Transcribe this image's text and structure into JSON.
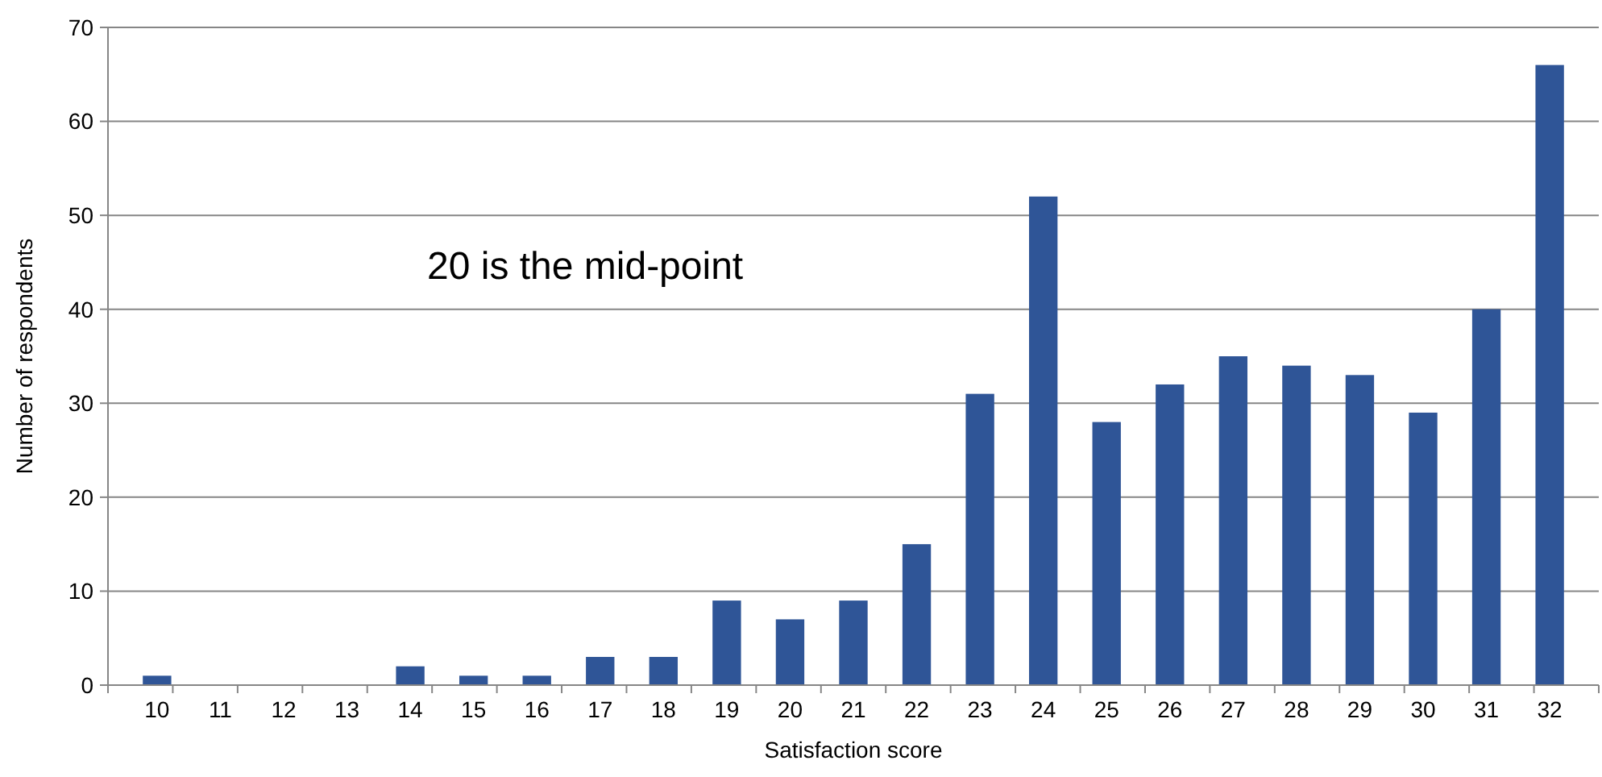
{
  "chart_data": {
    "type": "bar",
    "xlabel": "Satisfaction score",
    "ylabel": "Number of respondents",
    "categories": [
      "10",
      "11",
      "12",
      "13",
      "14",
      "15",
      "16",
      "17",
      "18",
      "19",
      "20",
      "21",
      "22",
      "23",
      "24",
      "25",
      "26",
      "27",
      "28",
      "29",
      "30",
      "31",
      "32"
    ],
    "values": [
      1,
      0,
      0,
      0,
      2,
      1,
      1,
      3,
      3,
      9,
      7,
      9,
      15,
      31,
      52,
      28,
      32,
      35,
      34,
      33,
      29,
      40,
      66
    ],
    "color": "#2f5597",
    "ylim": [
      0,
      70
    ],
    "yticks": [
      0,
      10,
      20,
      30,
      40,
      50,
      60,
      70
    ],
    "grid": "y",
    "annotations": [
      "20 is the mid-point"
    ]
  }
}
